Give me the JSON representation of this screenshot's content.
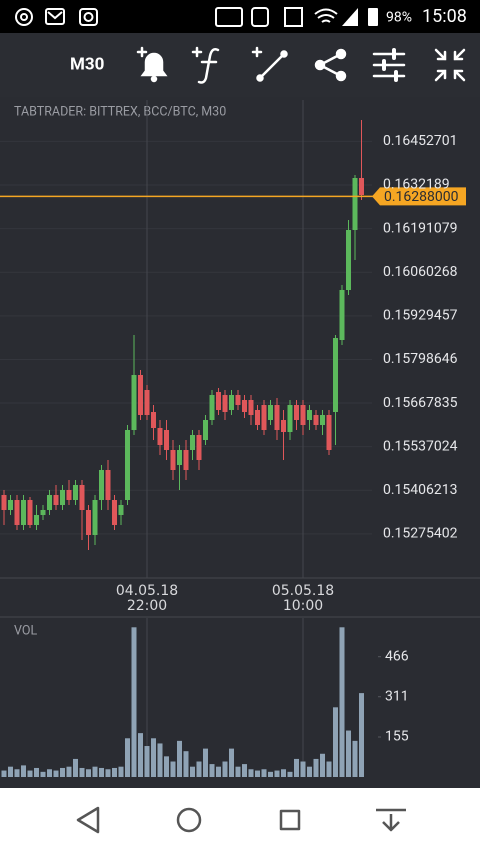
{
  "status_bar": {
    "battery": "98%",
    "time": "15:08"
  },
  "toolbar": {
    "timeframe": "M30"
  },
  "chart_data": {
    "type": "candlestick",
    "title": "TABTRADER: BITTREX, BCC/BTC, M30",
    "categories": [
      null,
      null,
      null,
      null,
      null,
      null,
      null,
      null,
      null,
      null,
      null,
      null,
      null,
      null,
      null,
      null,
      null,
      null,
      null,
      null,
      null,
      null,
      "04.05.18 22:00",
      null,
      null,
      null,
      null,
      null,
      null,
      null,
      null,
      null,
      null,
      null,
      null,
      null,
      null,
      null,
      null,
      null,
      null,
      null,
      null,
      null,
      null,
      null,
      "05.05.18 10:00",
      null,
      null,
      null,
      null,
      null,
      null,
      null,
      null,
      null
    ],
    "open": [
      0.15392,
      0.15347,
      0.15377,
      0.15302,
      0.15377,
      0.15302,
      0.15332,
      0.15347,
      0.15392,
      0.15362,
      0.15407,
      0.15377,
      0.15422,
      0.15347,
      0.15272,
      0.15377,
      0.15467,
      0.15377,
      0.15332,
      0.15377,
      0.15587,
      0.15752,
      0.15707,
      0.15641,
      0.15593,
      0.15587,
      0.15527,
      0.15482,
      0.15527,
      0.15527,
      0.15572,
      0.15557,
      0.15617,
      0.15701,
      0.15692,
      0.15647,
      0.15692,
      0.15677,
      0.15677,
      0.15647,
      0.15662,
      0.15617,
      0.15662,
      0.15617,
      0.15581,
      0.15662,
      0.15662,
      0.15617,
      0.15632,
      0.15602,
      0.15632,
      0.15641,
      0.15857,
      0.16007,
      0.16187,
      0.16343
    ],
    "high": [
      0.15407,
      0.15392,
      0.15392,
      0.15392,
      0.15386,
      0.15362,
      0.15362,
      0.15407,
      0.15422,
      0.15422,
      0.15437,
      0.15437,
      0.15437,
      0.15362,
      0.15392,
      0.15482,
      0.15497,
      0.15392,
      0.15377,
      0.15602,
      0.15872,
      0.15767,
      0.15722,
      0.15662,
      0.15617,
      0.15617,
      0.15557,
      0.15542,
      0.15557,
      0.15587,
      0.15587,
      0.15632,
      0.15707,
      0.15713,
      0.15707,
      0.15707,
      0.15707,
      0.15692,
      0.15692,
      0.15662,
      0.15677,
      0.15677,
      0.15683,
      0.15647,
      0.15677,
      0.15677,
      0.15677,
      0.15662,
      0.15647,
      0.15647,
      0.15647,
      0.15872,
      0.16022,
      0.16217,
      0.16352,
      0.16517
    ],
    "low": [
      0.15302,
      0.15332,
      0.15287,
      0.15287,
      0.15293,
      0.15287,
      0.15317,
      0.15332,
      0.15347,
      0.15347,
      0.15362,
      0.15362,
      0.15257,
      0.15227,
      0.15242,
      0.15347,
      0.15347,
      0.15287,
      0.15302,
      0.15362,
      0.15572,
      0.15617,
      0.15617,
      0.15557,
      0.15512,
      0.15497,
      0.15437,
      0.15407,
      0.15437,
      0.15497,
      0.15467,
      0.15542,
      0.15602,
      0.15632,
      0.15617,
      0.15632,
      0.15647,
      0.15623,
      0.15602,
      0.15587,
      0.15572,
      0.15602,
      0.15557,
      0.15497,
      0.15557,
      0.15587,
      0.15572,
      0.15587,
      0.15587,
      0.15572,
      0.15512,
      0.15542,
      0.15842,
      0.15992,
      0.16097,
      0.16277
    ],
    "close": [
      0.15347,
      0.15377,
      0.15302,
      0.15377,
      0.15302,
      0.15332,
      0.15347,
      0.15392,
      0.15362,
      0.15407,
      0.15377,
      0.15422,
      0.15347,
      0.15272,
      0.15377,
      0.15467,
      0.15377,
      0.15302,
      0.15362,
      0.15587,
      0.15752,
      0.15632,
      0.15632,
      0.15593,
      0.15542,
      0.15527,
      0.15467,
      0.15527,
      0.15467,
      0.15572,
      0.15497,
      0.15617,
      0.15692,
      0.15647,
      0.15641,
      0.15692,
      0.15662,
      0.15641,
      0.15632,
      0.15602,
      0.15587,
      0.15662,
      0.15587,
      0.15581,
      0.15662,
      0.15617,
      0.15602,
      0.15647,
      0.15602,
      0.15632,
      0.15527,
      0.15863,
      0.16007,
      0.16187,
      0.16343,
      0.16292
    ],
    "up_color": "#5cb85c",
    "down_color": "#e0575a",
    "ylim": [
      0.15143,
      0.16577
    ],
    "yticks": [
      0.16452701,
      0.1632189,
      0.16191079,
      0.16060268,
      0.15929457,
      0.15798646,
      0.15667835,
      0.15537024,
      0.15406213,
      0.15275402
    ],
    "grid": true,
    "current_price": {
      "value": 0.16288,
      "label": "0.16288000"
    },
    "current_price_color": "#f5a623",
    "volume": {
      "label": "VOL",
      "color": "#8fa3b5",
      "values": [
        25,
        40,
        30,
        45,
        25,
        35,
        20,
        30,
        25,
        35,
        40,
        70,
        35,
        30,
        40,
        35,
        30,
        35,
        40,
        150,
        580,
        170,
        120,
        150,
        130,
        80,
        60,
        140,
        100,
        40,
        60,
        110,
        50,
        40,
        60,
        110,
        40,
        50,
        30,
        25,
        30,
        20,
        25,
        30,
        20,
        70,
        60,
        40,
        70,
        90,
        60,
        270,
        580,
        180,
        140,
        325
      ],
      "ylim": [
        0,
        616
      ],
      "yticks": [
        155,
        311,
        466
      ]
    }
  }
}
